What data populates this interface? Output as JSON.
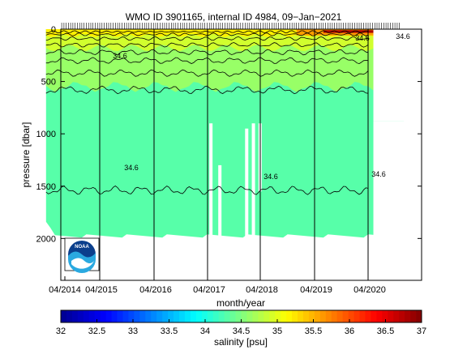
{
  "chart_data": {
    "type": "heatmap",
    "title": "WMO ID 3901165, internal ID 4984, 09−Jan−2021",
    "xlabel": "month/year",
    "ylabel": "pressure [dbar]",
    "x_ticks": [
      "04/2014",
      "04/2015",
      "04/2016",
      "04/2017",
      "04/2018",
      "04/2019",
      "04/2020"
    ],
    "x_range": [
      "2014-04",
      "2020-11"
    ],
    "y_ticks": [
      0,
      500,
      1000,
      1500,
      2000
    ],
    "y_range": [
      0,
      2400
    ],
    "y_reversed": true,
    "colorbar": {
      "label": "salinity [psu]",
      "ticks": [
        32,
        32.5,
        33,
        33.5,
        34,
        34.5,
        35,
        35.5,
        36,
        36.5,
        37
      ],
      "range": [
        32,
        37
      ],
      "colormap": [
        "#00008f",
        "#0000ff",
        "#0080ff",
        "#00ffff",
        "#80ff80",
        "#ffff00",
        "#ff8000",
        "#ff0000",
        "#800000"
      ]
    },
    "contour_labels": [
      "34.6",
      "34.6",
      "34.6",
      "34.6",
      "34.6",
      "34.6"
    ],
    "dominant_values": {
      "deep_water_salinity": 34.3,
      "mid_water_salinity": 34.6,
      "surface_salinity_max": 36.8
    },
    "profile_depth_max": 2000
  },
  "logo": {
    "text": "NOAA"
  }
}
